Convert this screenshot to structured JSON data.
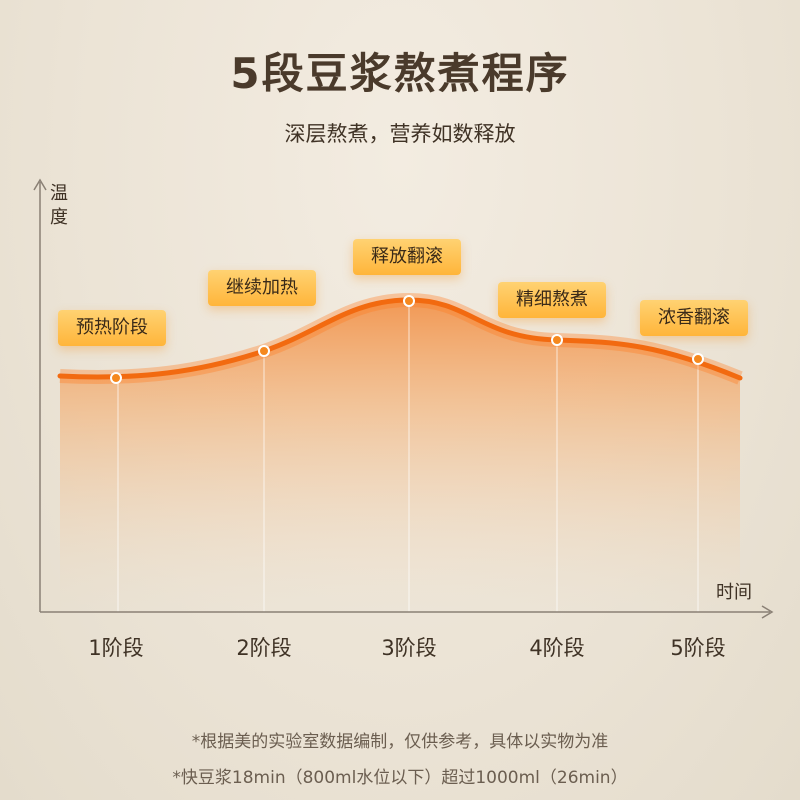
{
  "header": {
    "title": "5段豆浆熬煮程序",
    "subtitle": "深层熬煮，营养如数释放"
  },
  "axes": {
    "y_label": "温度",
    "x_label": "时间"
  },
  "stages": [
    {
      "badge": "预热阶段",
      "label": "1阶段"
    },
    {
      "badge": "继续加热",
      "label": "2阶段"
    },
    {
      "badge": "释放翻滚",
      "label": "3阶段"
    },
    {
      "badge": "精细熬煮",
      "label": "4阶段"
    },
    {
      "badge": "浓香翻滚",
      "label": "5阶段"
    }
  ],
  "footnotes": [
    "*根据美的实验室数据编制，仅供参考，具体以实物为准",
    "*快豆浆18min（800ml水位以下）超过1000ml（26min）"
  ]
}
